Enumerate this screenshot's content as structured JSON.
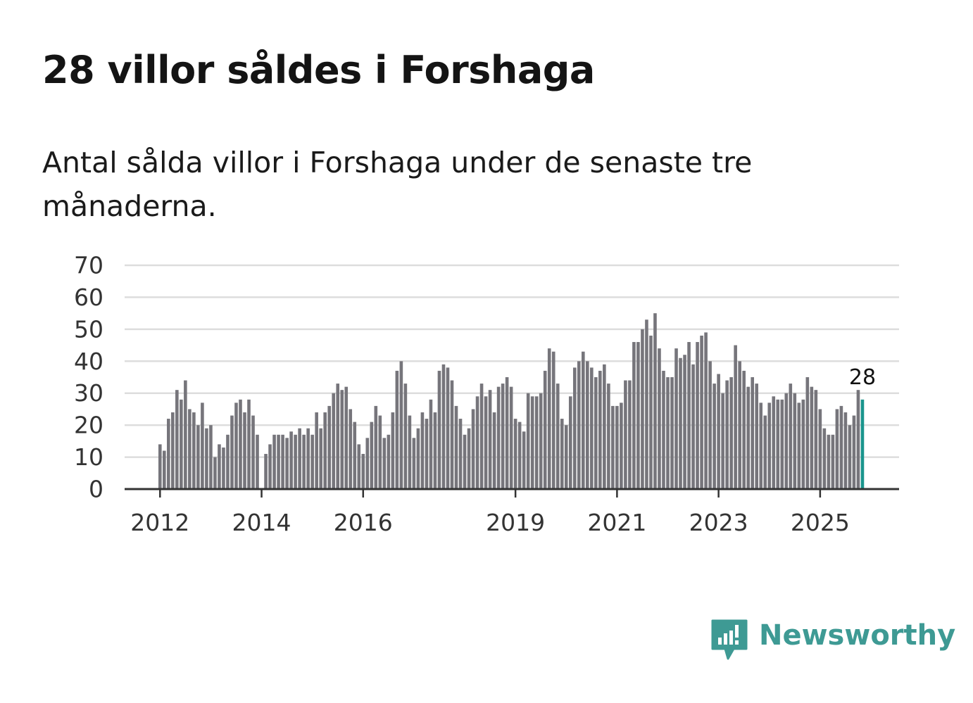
{
  "title": "28 villor såldes i Forshaga",
  "subtitle": "Antal sålda villor i Forshaga under de senaste tre månaderna.",
  "brand": {
    "name": "Newsworthy",
    "color": "#3e9a94",
    "icon": "newsworthy-logo-icon"
  },
  "colors": {
    "bar": "#76757b",
    "highlight": "#1a958d",
    "grid": "#dddddd",
    "axis": "#333333"
  },
  "chart_data": {
    "type": "bar",
    "title": "28 villor såldes i Forshaga",
    "xlabel": "",
    "ylabel": "",
    "ylim": [
      0,
      70
    ],
    "yticks": [
      "0",
      "10",
      "20",
      "30",
      "40",
      "50",
      "60",
      "70"
    ],
    "xtick_labels": [
      "2012",
      "2014",
      "2016",
      "2019",
      "2021",
      "2023",
      "2025"
    ],
    "start_month": "2012-01",
    "values": [
      14,
      12,
      22,
      24,
      31,
      28,
      34,
      25,
      24,
      20,
      27,
      19,
      20,
      10,
      14,
      13,
      17,
      23,
      27,
      28,
      24,
      28,
      23,
      17,
      null,
      11,
      14,
      17,
      17,
      17,
      16,
      18,
      17,
      19,
      17,
      19,
      17,
      24,
      19,
      24,
      26,
      30,
      33,
      31,
      32,
      25,
      21,
      14,
      11,
      16,
      21,
      26,
      23,
      16,
      17,
      24,
      37,
      40,
      33,
      23,
      16,
      19,
      24,
      22,
      28,
      24,
      37,
      39,
      38,
      34,
      26,
      22,
      17,
      19,
      25,
      29,
      33,
      29,
      31,
      24,
      32,
      33,
      35,
      32,
      22,
      21,
      18,
      30,
      29,
      29,
      30,
      37,
      44,
      43,
      33,
      22,
      20,
      29,
      38,
      40,
      43,
      40,
      38,
      35,
      37,
      39,
      33,
      26,
      26,
      27,
      34,
      34,
      46,
      46,
      50,
      53,
      48,
      55,
      44,
      37,
      35,
      35,
      44,
      41,
      42,
      46,
      39,
      46,
      48,
      49,
      40,
      33,
      36,
      30,
      34,
      35,
      45,
      40,
      37,
      32,
      35,
      33,
      27,
      23,
      27,
      29,
      28,
      28,
      30,
      33,
      30,
      27,
      28,
      35,
      32,
      31,
      25,
      19,
      17,
      17,
      25,
      26,
      24,
      20,
      23,
      31,
      28
    ],
    "highlight_label": "28",
    "highlight_index": 166
  }
}
